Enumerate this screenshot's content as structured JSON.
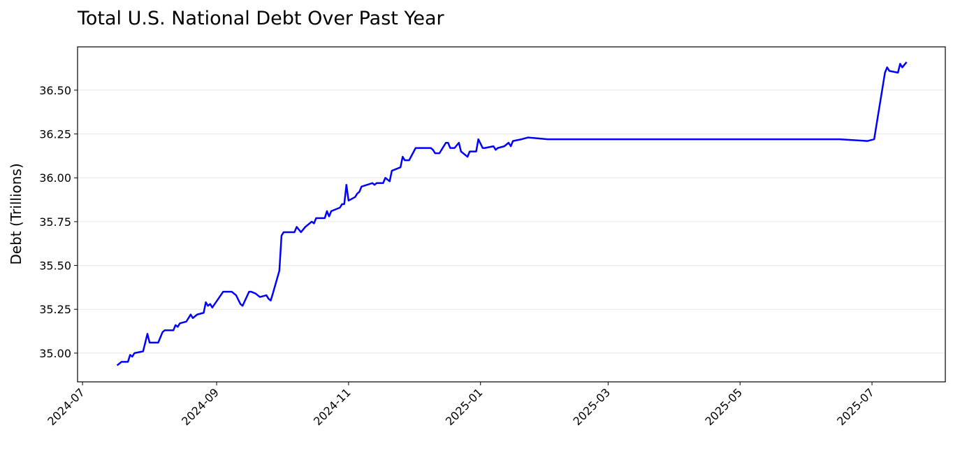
{
  "chart_data": {
    "type": "line",
    "title": "Total U.S. National Debt Over Past Year",
    "y_label": "Debt (Trillions)",
    "x": [
      19921,
      19923,
      19926,
      19927,
      19928,
      19929,
      19933,
      19935,
      19936,
      19938,
      19940,
      19942,
      19943,
      19947,
      19948,
      19949,
      19950,
      19953,
      19955,
      19956,
      19958,
      19961,
      19962,
      19963,
      19964,
      19965,
      19970,
      19974,
      19976,
      19978,
      19979,
      19982,
      19983,
      19985,
      19987,
      19990,
      19991,
      19992,
      19993,
      19996,
      19997,
      19998,
      20003,
      20004,
      20006,
      20008,
      20011,
      20012,
      20013,
      20017,
      20018,
      20019,
      20020,
      20024,
      20025,
      20026,
      20027,
      20028,
      20031,
      20032,
      20033,
      20034,
      20039,
      20040,
      20041,
      20044,
      20045,
      20047,
      20048,
      20050,
      20052,
      20053,
      20054,
      20056,
      20059,
      20062,
      20066,
      20067,
      20068,
      20070,
      20073,
      20074,
      20075,
      20077,
      20079,
      20080,
      20083,
      20084,
      20087,
      20088,
      20090,
      20091,
      20095,
      20096,
      20097,
      20100,
      20102,
      20103,
      20104,
      20108,
      20111,
      20120,
      20135,
      20150,
      20165,
      20180,
      20195,
      20210,
      20225,
      20240,
      20255,
      20268,
      20271,
      20276,
      20277,
      20278,
      20282,
      20283,
      20284,
      20286
    ],
    "series": [
      {
        "name": "Debt",
        "color": "#0000ff",
        "values": [
          34.93,
          34.95,
          34.95,
          34.99,
          34.98,
          35.0,
          35.01,
          35.11,
          35.06,
          35.06,
          35.06,
          35.12,
          35.13,
          35.13,
          35.16,
          35.15,
          35.17,
          35.18,
          35.22,
          35.2,
          35.22,
          35.23,
          35.29,
          35.27,
          35.28,
          35.26,
          35.35,
          35.35,
          35.33,
          35.28,
          35.27,
          35.35,
          35.35,
          35.34,
          35.32,
          35.33,
          35.31,
          35.3,
          35.34,
          35.47,
          35.67,
          35.69,
          35.69,
          35.72,
          35.69,
          35.72,
          35.75,
          35.74,
          35.77,
          35.77,
          35.81,
          35.78,
          35.81,
          35.83,
          35.85,
          35.85,
          35.96,
          35.87,
          35.89,
          35.91,
          35.92,
          35.95,
          35.97,
          35.96,
          35.97,
          35.97,
          36.0,
          35.98,
          36.04,
          36.05,
          36.06,
          36.12,
          36.1,
          36.1,
          36.17,
          36.17,
          36.17,
          36.16,
          36.14,
          36.14,
          36.2,
          36.2,
          36.17,
          36.17,
          36.2,
          36.15,
          36.12,
          36.15,
          36.15,
          36.22,
          36.17,
          36.17,
          36.18,
          36.16,
          36.17,
          36.18,
          36.2,
          36.18,
          36.21,
          36.22,
          36.23,
          36.22,
          36.22,
          36.22,
          36.22,
          36.22,
          36.22,
          36.22,
          36.22,
          36.22,
          36.22,
          36.21,
          36.22,
          36.6,
          36.63,
          36.61,
          36.6,
          36.65,
          36.63,
          36.66
        ]
      }
    ],
    "xlim": [
      19902.7,
      20303.9
    ],
    "ylim": [
      34.836,
      36.747
    ],
    "xticks": [
      {
        "value": 19905,
        "label": "2024-07"
      },
      {
        "value": 19967,
        "label": "2024-09"
      },
      {
        "value": 20028,
        "label": "2024-11"
      },
      {
        "value": 20089,
        "label": "2025-01"
      },
      {
        "value": 20148,
        "label": "2025-03"
      },
      {
        "value": 20209,
        "label": "2025-05"
      },
      {
        "value": 20270,
        "label": "2025-07"
      }
    ],
    "yticks": [
      {
        "value": 35,
        "label": "35.00"
      },
      {
        "value": 35.25,
        "label": "35.25"
      },
      {
        "value": 35.5,
        "label": "35.50"
      },
      {
        "value": 35.75,
        "label": "35.75"
      },
      {
        "value": 36,
        "label": "36.00"
      },
      {
        "value": 36.25,
        "label": "36.25"
      },
      {
        "value": 36.5,
        "label": "36.50"
      }
    ],
    "grid": "y"
  }
}
